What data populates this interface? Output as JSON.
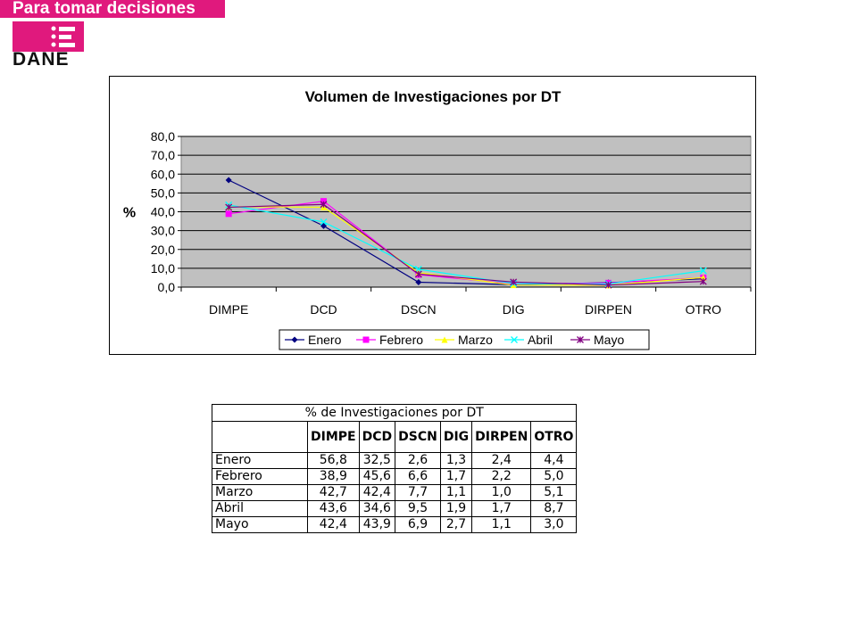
{
  "header": {
    "tagline": "Para tomar decisiones",
    "logo_text": "DANE",
    "brand_color": "#e0197d"
  },
  "chart_data": {
    "type": "line",
    "title": "Volumen de Investigaciones por DT",
    "ylabel": "%",
    "xlabel": "",
    "categories": [
      "DIMPE",
      "DCD",
      "DSCN",
      "DIG",
      "DIRPEN",
      "OTRO"
    ],
    "yticks": [
      "0,0",
      "10,0",
      "20,0",
      "30,0",
      "40,0",
      "50,0",
      "60,0",
      "70,0",
      "80,0"
    ],
    "ylim": [
      0,
      80
    ],
    "grid": true,
    "legend_position": "bottom",
    "plot_background": "#c0c0c0",
    "series": [
      {
        "name": "Enero",
        "color": "#000080",
        "marker": "diamond",
        "values": [
          56.8,
          32.5,
          2.6,
          1.3,
          2.4,
          4.4
        ]
      },
      {
        "name": "Febrero",
        "color": "#ff00ff",
        "marker": "square",
        "values": [
          38.9,
          45.6,
          6.6,
          1.7,
          2.2,
          5.0
        ]
      },
      {
        "name": "Marzo",
        "color": "#ffff00",
        "marker": "triangle",
        "values": [
          42.7,
          42.4,
          7.7,
          1.1,
          1.0,
          5.1
        ]
      },
      {
        "name": "Abril",
        "color": "#00ffff",
        "marker": "x",
        "values": [
          43.6,
          34.6,
          9.5,
          1.9,
          1.7,
          8.7
        ]
      },
      {
        "name": "Mayo",
        "color": "#800080",
        "marker": "star",
        "values": [
          42.4,
          43.9,
          6.9,
          2.7,
          1.1,
          3.0
        ]
      }
    ]
  },
  "table": {
    "title": "% de Investigaciones por DT",
    "columns": [
      "DIMPE",
      "DCD",
      "DSCN",
      "DIG",
      "DIRPEN",
      "OTRO"
    ],
    "rows": [
      {
        "label": "Enero",
        "cells": [
          "56,8",
          "32,5",
          "2,6",
          "1,3",
          "2,4",
          "4,4"
        ]
      },
      {
        "label": "Febrero",
        "cells": [
          "38,9",
          "45,6",
          "6,6",
          "1,7",
          "2,2",
          "5,0"
        ]
      },
      {
        "label": "Marzo",
        "cells": [
          "42,7",
          "42,4",
          "7,7",
          "1,1",
          "1,0",
          "5,1"
        ]
      },
      {
        "label": "Abril",
        "cells": [
          "43,6",
          "34,6",
          "9,5",
          "1,9",
          "1,7",
          "8,7"
        ]
      },
      {
        "label": "Mayo",
        "cells": [
          "42,4",
          "43,9",
          "6,9",
          "2,7",
          "1,1",
          "3,0"
        ]
      }
    ]
  }
}
